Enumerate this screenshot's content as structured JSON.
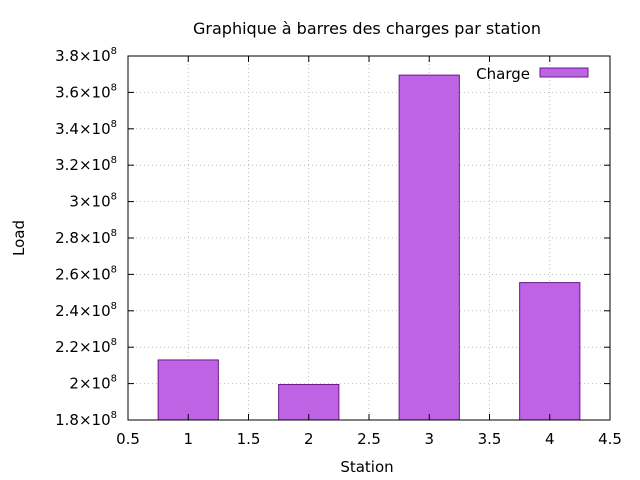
{
  "chart_data": {
    "type": "bar",
    "title": "Graphique à barres des charges par station",
    "xlabel": "Station",
    "ylabel": "Load",
    "x": [
      1,
      2,
      3,
      4
    ],
    "series": [
      {
        "name": "Charge",
        "values": [
          213000000,
          199500000,
          369500000,
          255500000
        ]
      }
    ],
    "xlim": [
      0.5,
      4.5
    ],
    "ylim": [
      180000000,
      380000000
    ],
    "x_ticks": [
      "0.5",
      "1",
      "1.5",
      "2",
      "2.5",
      "3",
      "3.5",
      "4",
      "4.5"
    ],
    "y_ticks": [
      {
        "mantissa": "1.8",
        "exp": "8"
      },
      {
        "mantissa": "2",
        "exp": "8"
      },
      {
        "mantissa": "2.2",
        "exp": "8"
      },
      {
        "mantissa": "2.4",
        "exp": "8"
      },
      {
        "mantissa": "2.6",
        "exp": "8"
      },
      {
        "mantissa": "2.8",
        "exp": "8"
      },
      {
        "mantissa": "3",
        "exp": "8"
      },
      {
        "mantissa": "3.2",
        "exp": "8"
      },
      {
        "mantissa": "3.4",
        "exp": "8"
      },
      {
        "mantissa": "3.6",
        "exp": "8"
      },
      {
        "mantissa": "3.8",
        "exp": "8"
      }
    ],
    "bar_color": "#bf63e5",
    "bar_edge_color": "#6a1a8a",
    "grid": true,
    "legend_position": "top-right"
  }
}
